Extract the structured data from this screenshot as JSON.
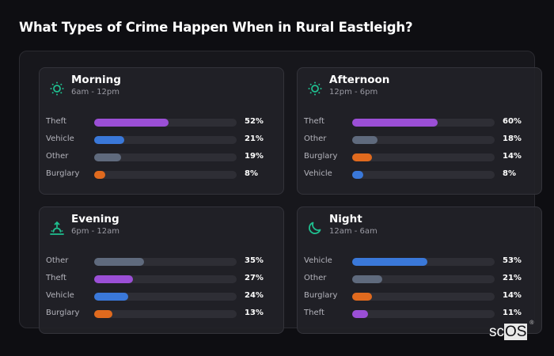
{
  "title": "What Types of Crime Happen When in Rural Eastleigh?",
  "colors": {
    "Theft": "#9b4fd6",
    "Vehicle": "#3a78d9",
    "Other": "#5f6a7d",
    "Burglary": "#e06a1e",
    "accent": "#1fbf8f"
  },
  "cards": [
    {
      "name": "Morning",
      "range": "6am - 12pm",
      "icon": "sun-icon",
      "rows": [
        {
          "label": "Theft",
          "value": 52,
          "pct": "52%"
        },
        {
          "label": "Vehicle",
          "value": 21,
          "pct": "21%"
        },
        {
          "label": "Other",
          "value": 19,
          "pct": "19%"
        },
        {
          "label": "Burglary",
          "value": 8,
          "pct": "8%"
        }
      ]
    },
    {
      "name": "Afternoon",
      "range": "12pm - 6pm",
      "icon": "sun-icon",
      "rows": [
        {
          "label": "Theft",
          "value": 60,
          "pct": "60%"
        },
        {
          "label": "Other",
          "value": 18,
          "pct": "18%"
        },
        {
          "label": "Burglary",
          "value": 14,
          "pct": "14%"
        },
        {
          "label": "Vehicle",
          "value": 8,
          "pct": "8%"
        }
      ]
    },
    {
      "name": "Evening",
      "range": "6pm - 12am",
      "icon": "sunset-icon",
      "rows": [
        {
          "label": "Other",
          "value": 35,
          "pct": "35%"
        },
        {
          "label": "Theft",
          "value": 27,
          "pct": "27%"
        },
        {
          "label": "Vehicle",
          "value": 24,
          "pct": "24%"
        },
        {
          "label": "Burglary",
          "value": 13,
          "pct": "13%"
        }
      ]
    },
    {
      "name": "Night",
      "range": "12am - 6am",
      "icon": "moon-icon",
      "rows": [
        {
          "label": "Vehicle",
          "value": 53,
          "pct": "53%"
        },
        {
          "label": "Other",
          "value": 21,
          "pct": "21%"
        },
        {
          "label": "Burglary",
          "value": 14,
          "pct": "14%"
        },
        {
          "label": "Theft",
          "value": 11,
          "pct": "11%"
        }
      ]
    }
  ],
  "logo": {
    "sc": "sc",
    "os": "OS",
    "reg": "®"
  },
  "chart_data": {
    "type": "bar",
    "title": "What Types of Crime Happen When in Rural Eastleigh?",
    "orientation": "horizontal",
    "unit": "%",
    "xlim": [
      0,
      100
    ],
    "panels": [
      {
        "title": "Morning",
        "subtitle": "6am - 12pm",
        "categories": [
          "Theft",
          "Vehicle",
          "Other",
          "Burglary"
        ],
        "values": [
          52,
          21,
          19,
          8
        ]
      },
      {
        "title": "Afternoon",
        "subtitle": "12pm - 6pm",
        "categories": [
          "Theft",
          "Other",
          "Burglary",
          "Vehicle"
        ],
        "values": [
          60,
          18,
          14,
          8
        ]
      },
      {
        "title": "Evening",
        "subtitle": "6pm - 12am",
        "categories": [
          "Other",
          "Theft",
          "Vehicle",
          "Burglary"
        ],
        "values": [
          35,
          27,
          24,
          13
        ]
      },
      {
        "title": "Night",
        "subtitle": "12am - 6am",
        "categories": [
          "Vehicle",
          "Other",
          "Burglary",
          "Theft"
        ],
        "values": [
          53,
          21,
          14,
          11
        ]
      }
    ],
    "grid": false,
    "legend": null
  }
}
